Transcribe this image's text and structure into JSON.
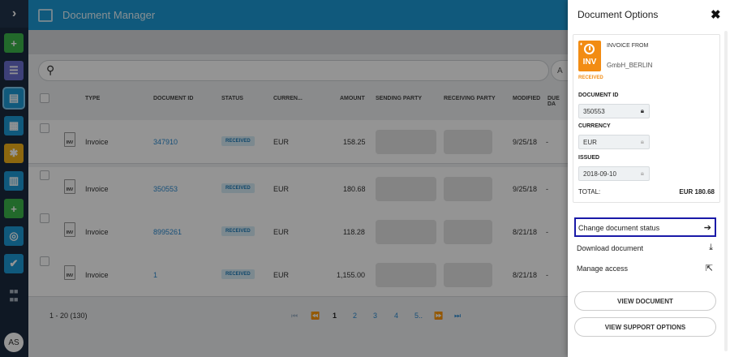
{
  "sidebar": {
    "expand_icon": "chevron-right-icon",
    "items": [
      {
        "name": "add",
        "glyph": "+",
        "color": "#3cb54a"
      },
      {
        "name": "messages",
        "glyph": "☰",
        "color": "#6a6fcf"
      },
      {
        "name": "documents",
        "glyph": "▤",
        "color": "#1d9ad6"
      },
      {
        "name": "clipboard",
        "glyph": "▦",
        "color": "#1d9ad6"
      },
      {
        "name": "puzzle",
        "glyph": "✱",
        "color": "#f2b21b"
      },
      {
        "name": "buildings",
        "glyph": "▥",
        "color": "#1d9ad6"
      },
      {
        "name": "new-document",
        "glyph": "+",
        "color": "#3cb54a"
      },
      {
        "name": "support",
        "glyph": "◎",
        "color": "#1d9ad6"
      },
      {
        "name": "tasks",
        "glyph": "✔",
        "color": "#1d9ad6"
      },
      {
        "name": "apps",
        "glyph": "▪▪",
        "color": "transparent"
      }
    ],
    "avatar": "AS"
  },
  "app": {
    "title": "Document Manager",
    "columns": {
      "type": "TYPE",
      "document_id": "DOCUMENT ID",
      "status": "STATUS",
      "currency": "CURREN...",
      "amount": "AMOUNT",
      "sending_party": "SENDING PARTY",
      "receiving_party": "RECEIVING PARTY",
      "modified": "MODIFIED",
      "due_date": "DUE DA"
    },
    "rows": [
      {
        "icon": "INV",
        "type": "Invoice",
        "doc_id": "347910",
        "status": "RECEIVED",
        "currency": "EUR",
        "amount": "158.25",
        "modified": "9/25/18",
        "due": "-"
      },
      {
        "icon": "INV",
        "type": "Invoice",
        "doc_id": "350553",
        "status": "RECEIVED",
        "currency": "EUR",
        "amount": "180.68",
        "modified": "9/25/18",
        "due": "-"
      },
      {
        "icon": "INV",
        "type": "Invoice",
        "doc_id": "8995261",
        "status": "RECEIVED",
        "currency": "EUR",
        "amount": "118.28",
        "modified": "8/21/18",
        "due": "-"
      },
      {
        "icon": "INV",
        "type": "Invoice",
        "doc_id": "1",
        "status": "RECEIVED",
        "currency": "EUR",
        "amount": "1,155.00",
        "modified": "8/21/18",
        "due": "-"
      }
    ],
    "pagination": {
      "range": "1 - 20 (130)",
      "first": "⏮",
      "prev": "⏪",
      "pages": [
        "1",
        "2",
        "3",
        "4",
        "5.."
      ],
      "next": "⏩",
      "last": "⏭"
    }
  },
  "panel": {
    "title": "Document Options",
    "close": "✖",
    "card": {
      "icon_label": "INV",
      "status": "RECEIVED",
      "from_label": "INVOICE FROM",
      "sender": "GmbH_BERLIN",
      "fields": [
        {
          "label": "DOCUMENT ID",
          "value": "350553"
        },
        {
          "label": "CURRENCY",
          "value": "EUR"
        },
        {
          "label": "ISSUED",
          "value": "2018-09-10"
        }
      ],
      "total_label": "TOTAL:",
      "total_value": "EUR 180.68"
    },
    "actions": [
      {
        "label": "Change document status",
        "icon": "arrow-right-icon",
        "glyph": "➔"
      },
      {
        "label": "Download document",
        "icon": "download-icon",
        "glyph": "⤓"
      },
      {
        "label": "Manage access",
        "icon": "share-icon",
        "glyph": "⇱"
      }
    ],
    "buttons": {
      "view_document": "VIEW DOCUMENT",
      "view_support": "VIEW SUPPORT OPTIONS"
    }
  }
}
